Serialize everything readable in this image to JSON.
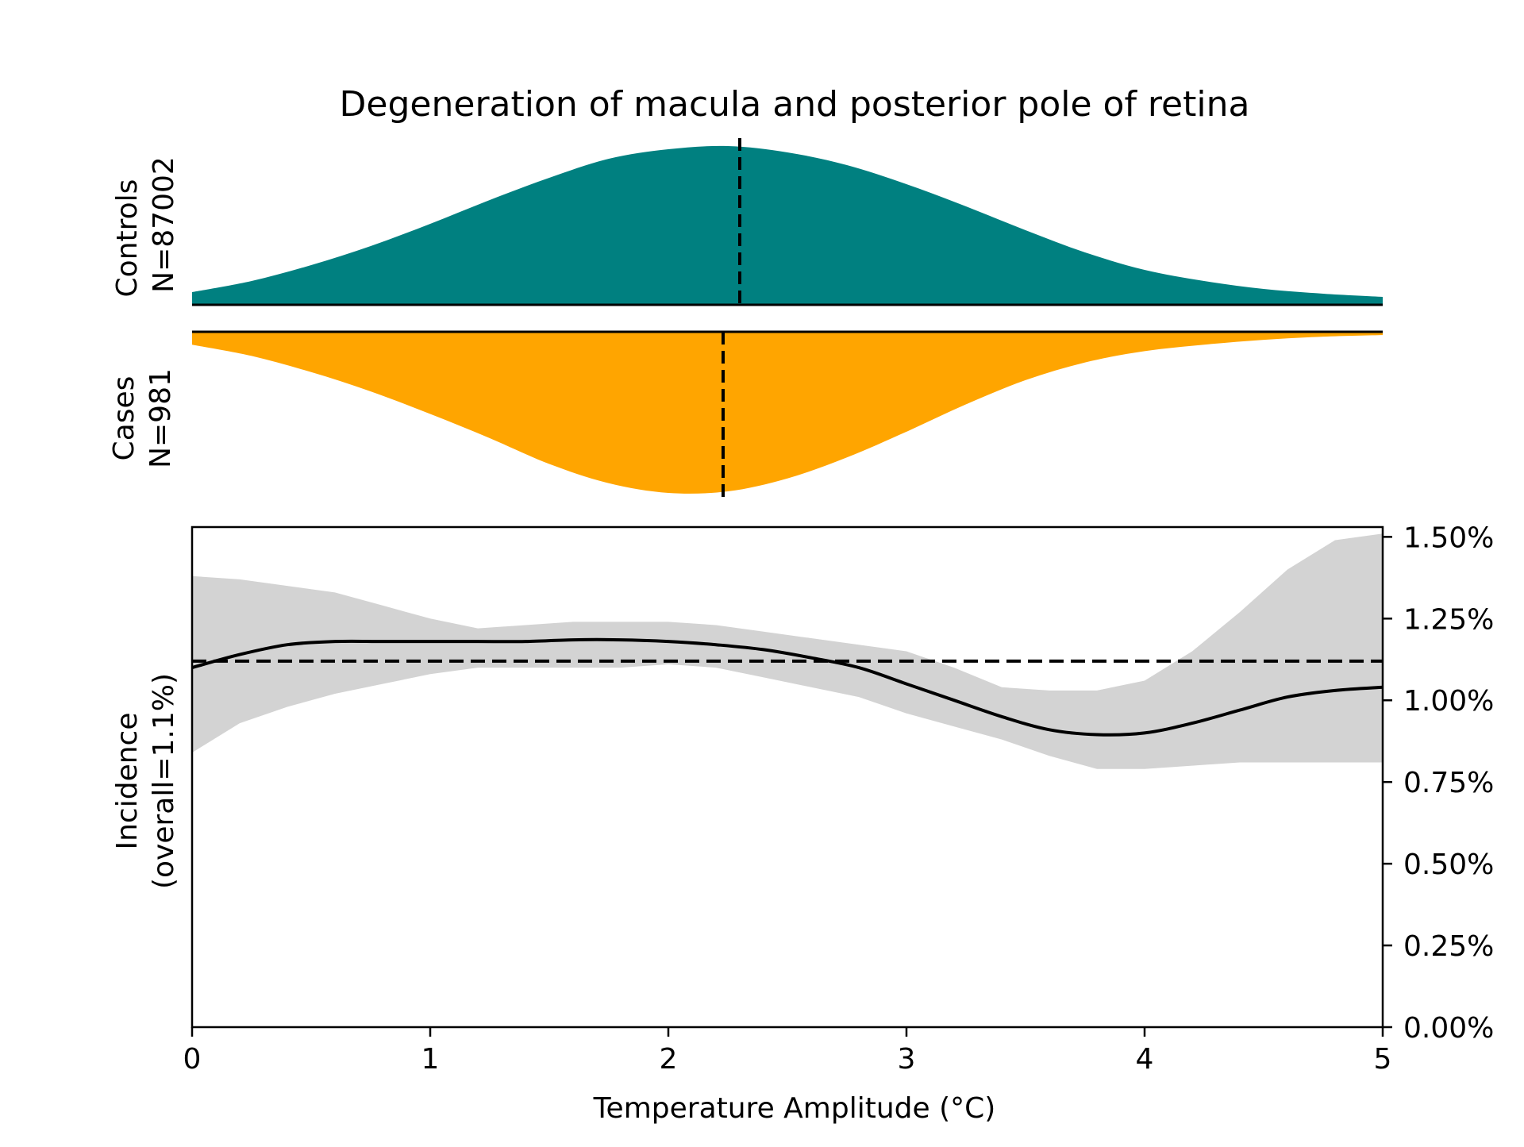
{
  "chart_data": {
    "type": "area",
    "title": "Degeneration of macula and posterior pole of retina",
    "xlabel": "Temperature Amplitude (°C)",
    "xlim": [
      0,
      5
    ],
    "x_ticks": [
      "0",
      "1",
      "2",
      "3",
      "4",
      "5"
    ],
    "distributions": {
      "controls": {
        "label_line1": "Controls",
        "label_line2": "N=87002",
        "color": "#008080",
        "mean": 2.3,
        "x": [
          0,
          0.25,
          0.5,
          0.75,
          1.0,
          1.25,
          1.5,
          1.75,
          2.0,
          2.25,
          2.5,
          2.75,
          3.0,
          3.25,
          3.5,
          3.75,
          4.0,
          4.25,
          4.5,
          4.75,
          5.0
        ],
        "density": [
          0.08,
          0.15,
          0.25,
          0.37,
          0.51,
          0.66,
          0.8,
          0.92,
          0.98,
          1.0,
          0.96,
          0.88,
          0.76,
          0.62,
          0.47,
          0.33,
          0.22,
          0.15,
          0.1,
          0.07,
          0.05
        ]
      },
      "cases": {
        "label_line1": "Cases",
        "label_line2": "N=981",
        "color": "#FFA500",
        "mean": 2.23,
        "x": [
          0,
          0.25,
          0.5,
          0.75,
          1.0,
          1.25,
          1.5,
          1.75,
          2.0,
          2.25,
          2.5,
          2.75,
          3.0,
          3.25,
          3.5,
          3.75,
          4.0,
          4.25,
          4.5,
          4.75,
          5.0
        ],
        "density": [
          0.08,
          0.15,
          0.25,
          0.37,
          0.51,
          0.66,
          0.82,
          0.94,
          1.0,
          0.99,
          0.91,
          0.78,
          0.62,
          0.45,
          0.3,
          0.19,
          0.12,
          0.08,
          0.05,
          0.03,
          0.02
        ]
      }
    },
    "incidence": {
      "ylabel_line1": "Incidence",
      "ylabel_line2": "(overall=1.1%)",
      "ylim": [
        0,
        1.53
      ],
      "y_ticks": [
        0,
        0.25,
        0.5,
        0.75,
        1.0,
        1.25,
        1.5
      ],
      "y_tick_labels": [
        "0.00%",
        "0.25%",
        "0.50%",
        "0.75%",
        "1.00%",
        "1.25%",
        "1.50%"
      ],
      "overall": 1.12,
      "x": [
        0,
        0.2,
        0.4,
        0.6,
        0.8,
        1.0,
        1.2,
        1.4,
        1.6,
        1.8,
        2.0,
        2.2,
        2.4,
        2.6,
        2.8,
        3.0,
        3.2,
        3.4,
        3.6,
        3.8,
        4.0,
        4.2,
        4.4,
        4.6,
        4.8,
        5.0
      ],
      "y": [
        1.1,
        1.14,
        1.17,
        1.18,
        1.18,
        1.18,
        1.18,
        1.18,
        1.185,
        1.185,
        1.18,
        1.17,
        1.155,
        1.13,
        1.1,
        1.05,
        1.0,
        0.95,
        0.91,
        0.895,
        0.9,
        0.93,
        0.97,
        1.01,
        1.03,
        1.04
      ],
      "ci_upper": [
        1.38,
        1.37,
        1.35,
        1.33,
        1.29,
        1.25,
        1.22,
        1.23,
        1.24,
        1.24,
        1.24,
        1.23,
        1.21,
        1.19,
        1.17,
        1.15,
        1.1,
        1.04,
        1.03,
        1.03,
        1.06,
        1.15,
        1.27,
        1.4,
        1.49,
        1.51
      ],
      "ci_lower": [
        0.84,
        0.93,
        0.98,
        1.02,
        1.05,
        1.08,
        1.1,
        1.1,
        1.1,
        1.1,
        1.11,
        1.1,
        1.07,
        1.04,
        1.01,
        0.96,
        0.92,
        0.88,
        0.83,
        0.79,
        0.79,
        0.8,
        0.81,
        0.81,
        0.81,
        0.81
      ],
      "ci_color": "#D3D3D3",
      "line_color": "#000000"
    }
  }
}
